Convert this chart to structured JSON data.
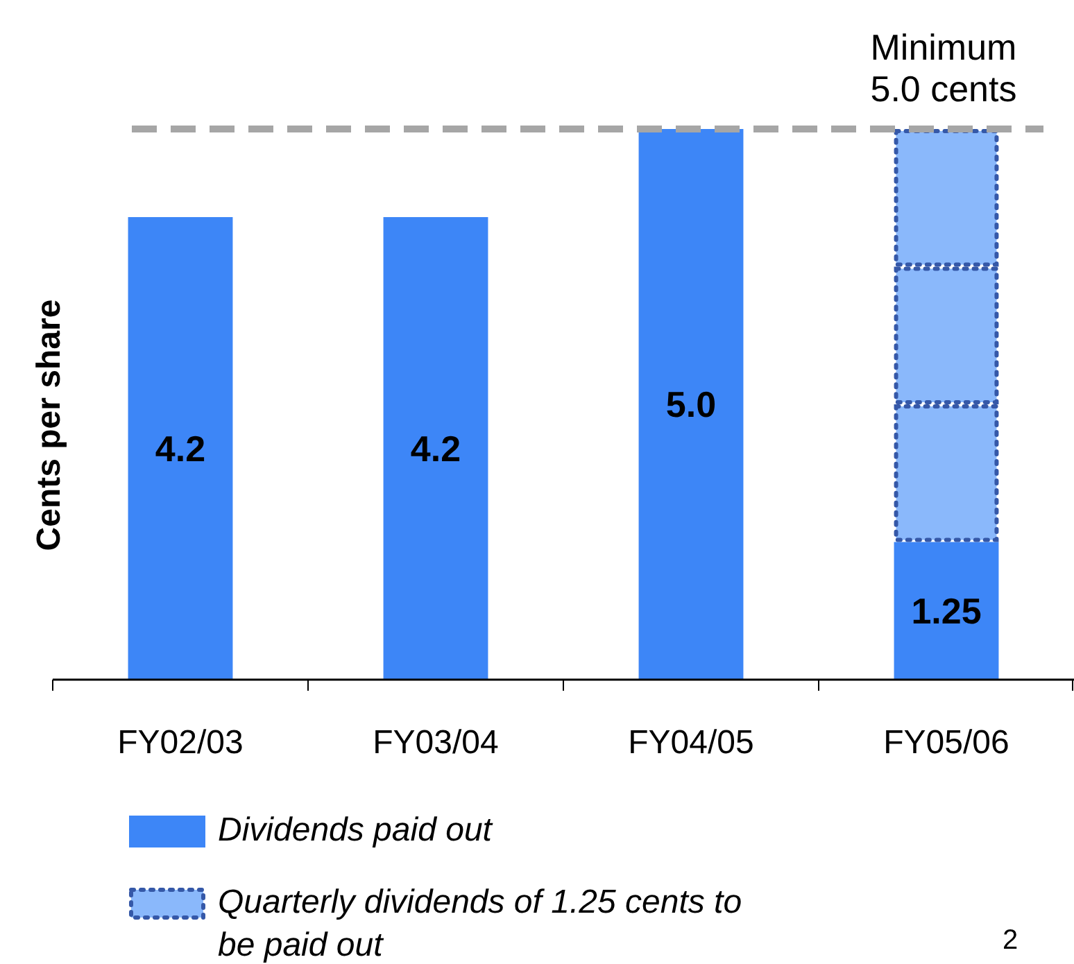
{
  "chart_data": {
    "type": "bar",
    "stacked": true,
    "ylabel": "Cents per share",
    "categories": [
      "FY02/03",
      "FY03/04",
      "FY04/05",
      "FY05/06"
    ],
    "ylim": [
      0,
      5.0
    ],
    "tick_labels": "x",
    "legend": "bottom",
    "series": [
      {
        "name": "Dividends paid out",
        "color": "#3d86f7",
        "values": [
          4.2,
          4.2,
          5.0,
          1.25
        ],
        "value_labels": [
          "4.2",
          "4.2",
          "5.0",
          "1.25"
        ]
      },
      {
        "name": "Quarterly dividends of 1.25 cents to be paid out",
        "color": "#8ab8fb",
        "line_style": "dotted",
        "values": [
          null,
          null,
          null,
          1.25
        ]
      },
      {
        "color": "#8ab8fb",
        "line_style": "dotted",
        "values": [
          null,
          null,
          null,
          1.25
        ]
      },
      {
        "color": "#8ab8fb",
        "line_style": "dotted",
        "values": [
          null,
          null,
          null,
          1.25
        ]
      }
    ],
    "ref_lines": [
      {
        "axis": "y",
        "value": 5.0,
        "label": "Minimum\n5.0 cents",
        "color": "#a6a6a6",
        "line_style": "dashed"
      }
    ],
    "annotations": [
      "2"
    ]
  }
}
